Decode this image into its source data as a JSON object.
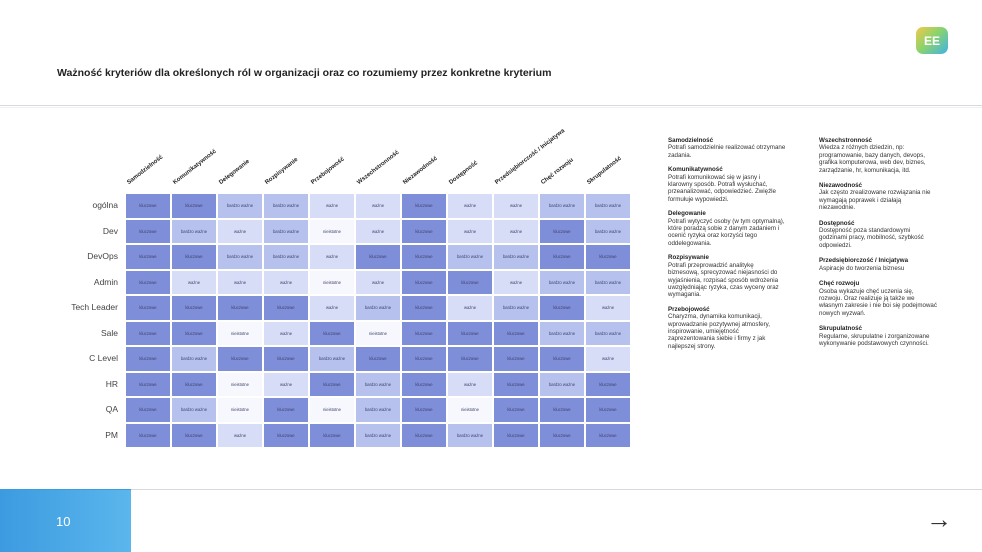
{
  "logo": "EE",
  "title": "Ważność kryteriów dla określonych ról w organizacji oraz co rozumiemy przez konkretne kryterium",
  "columns": [
    "Samodzielność",
    "Komunikatywność",
    "Delegowanie",
    "Rozpisywanie",
    "Przebojowość",
    "Wszechstronność",
    "Niezawodność",
    "Dostępność",
    "Przedsiębiorczość / Inicjatywa",
    "Chęć rozwoju",
    "Skrupulatność"
  ],
  "rows": [
    {
      "role": "ogólna",
      "cells": [
        "kluczowe",
        "kluczowe",
        "bardzo ważne",
        "bardzo ważne",
        "ważne",
        "ważne",
        "kluczowe",
        "ważne",
        "ważne",
        "bardzo ważne",
        "bardzo ważne"
      ]
    },
    {
      "role": "Dev",
      "cells": [
        "kluczowe",
        "bardzo ważne",
        "ważne",
        "bardzo ważne",
        "nieistotne",
        "ważne",
        "kluczowe",
        "ważne",
        "ważne",
        "kluczowe",
        "bardzo ważne"
      ]
    },
    {
      "role": "DevOps",
      "cells": [
        "kluczowe",
        "kluczowe",
        "bardzo ważne",
        "bardzo ważne",
        "ważne",
        "kluczowe",
        "kluczowe",
        "bardzo ważne",
        "bardzo ważne",
        "kluczowe",
        "kluczowe"
      ]
    },
    {
      "role": "Admin",
      "cells": [
        "kluczowe",
        "ważne",
        "ważne",
        "ważne",
        "nieistotne",
        "ważne",
        "kluczowe",
        "kluczowe",
        "ważne",
        "bardzo ważne",
        "bardzo ważne"
      ]
    },
    {
      "role": "Tech Leader",
      "cells": [
        "kluczowe",
        "kluczowe",
        "kluczowe",
        "kluczowe",
        "ważne",
        "bardzo ważne",
        "kluczowe",
        "ważne",
        "bardzo ważne",
        "kluczowe",
        "ważne"
      ]
    },
    {
      "role": "Sale",
      "cells": [
        "kluczowe",
        "kluczowe",
        "nieistotne",
        "ważne",
        "kluczowe",
        "nieistotne",
        "kluczowe",
        "kluczowe",
        "kluczowe",
        "bardzo ważne",
        "bardzo ważne"
      ]
    },
    {
      "role": "C Level",
      "cells": [
        "kluczowe",
        "bardzo ważne",
        "kluczowe",
        "kluczowe",
        "bardzo ważne",
        "kluczowe",
        "kluczowe",
        "kluczowe",
        "kluczowe",
        "kluczowe",
        "ważne"
      ]
    },
    {
      "role": "HR",
      "cells": [
        "kluczowe",
        "kluczowe",
        "nieistotne",
        "ważne",
        "kluczowe",
        "bardzo ważne",
        "kluczowe",
        "ważne",
        "kluczowe",
        "bardzo ważne",
        "kluczowe"
      ]
    },
    {
      "role": "QA",
      "cells": [
        "kluczowe",
        "bardzo ważne",
        "nieistotne",
        "kluczowe",
        "nieistotne",
        "bardzo ważne",
        "kluczowe",
        "nieistotne",
        "kluczowe",
        "kluczowe",
        "kluczowe"
      ]
    },
    {
      "role": "PM",
      "cells": [
        "kluczowe",
        "kluczowe",
        "ważne",
        "kluczowe",
        "kluczowe",
        "bardzo ważne",
        "kluczowe",
        "bardzo ważne",
        "kluczowe",
        "kluczowe",
        "kluczowe"
      ]
    }
  ],
  "colors": {
    "kluczowe": "#7f8ed8",
    "bardzo ważne": "#b7c1ee",
    "ważne": "#d7ddf6",
    "nieistotne": "#f7f8fd",
    "footer": "#3c9be0"
  },
  "descriptions_left": [
    {
      "term": "Samodzielność",
      "text": "Potrafi samodzielnie realizować otrzymane zadania."
    },
    {
      "term": "Komunikatywność",
      "text": "Potrafi komunikować się w jasny i klarowny sposób. Potrafi wysłuchać, przeanalizować, odpowiedzieć. Zwięźle formułuje wypowiedzi."
    },
    {
      "term": "Delegowanie",
      "text": "Potrafi wytyczyć osoby (w tym optymalną), które poradzą sobie z danym zadaniem i ocenić ryzyka oraz korzyści tego oddelegowania."
    },
    {
      "term": "Rozpisywanie",
      "text": "Potrafi przeprowadzić analitykę biznesową, sprecyzować niejasności do wyjaśnienia, rozpisać sposób wdrożenia uwzględniając ryzyka, czas wyceny oraz wymagania."
    },
    {
      "term": "Przebojowość",
      "text": "Charyzma, dynamika komunikacji, wprowadzanie pozytywnej atmosfery, inspirowanie, umiejętność zaprezentowania siebie i firmy z jak najlepszej strony."
    }
  ],
  "descriptions_right": [
    {
      "term": "Wszechstronność",
      "text": "Wiedza z różnych dziedzin, np: programowanie, bazy danych, devops, grafika komputerowa, web dev, biznes, zarządzanie, hr, komunikacja, itd."
    },
    {
      "term": "Niezawodność",
      "text": "Jak często zrealizowane rozwiązania nie wymagają poprawek i działają niezawodnie."
    },
    {
      "term": "Dostępność",
      "text": "Dostępność poza standardowymi godzinami pracy, mobilność, szybkość odpowiedzi."
    },
    {
      "term": "Przedsiębiorczość / Inicjatywa",
      "text": "Aspiracje do tworzenia biznesu"
    },
    {
      "term": "Chęć rozwoju",
      "text": "Osoba wykazuje chęć uczenia się, rozwoju. Oraz realizuje ją także we własnym zakresie i nie boi się podejmować nowych wyzwań."
    },
    {
      "term": "Skrupulatność",
      "text": "Regularne, skrupulatne i zorganizowane wykonywanie podstawowych czynności."
    }
  ],
  "footer": {
    "page_number": "10",
    "next_arrow": "→"
  }
}
